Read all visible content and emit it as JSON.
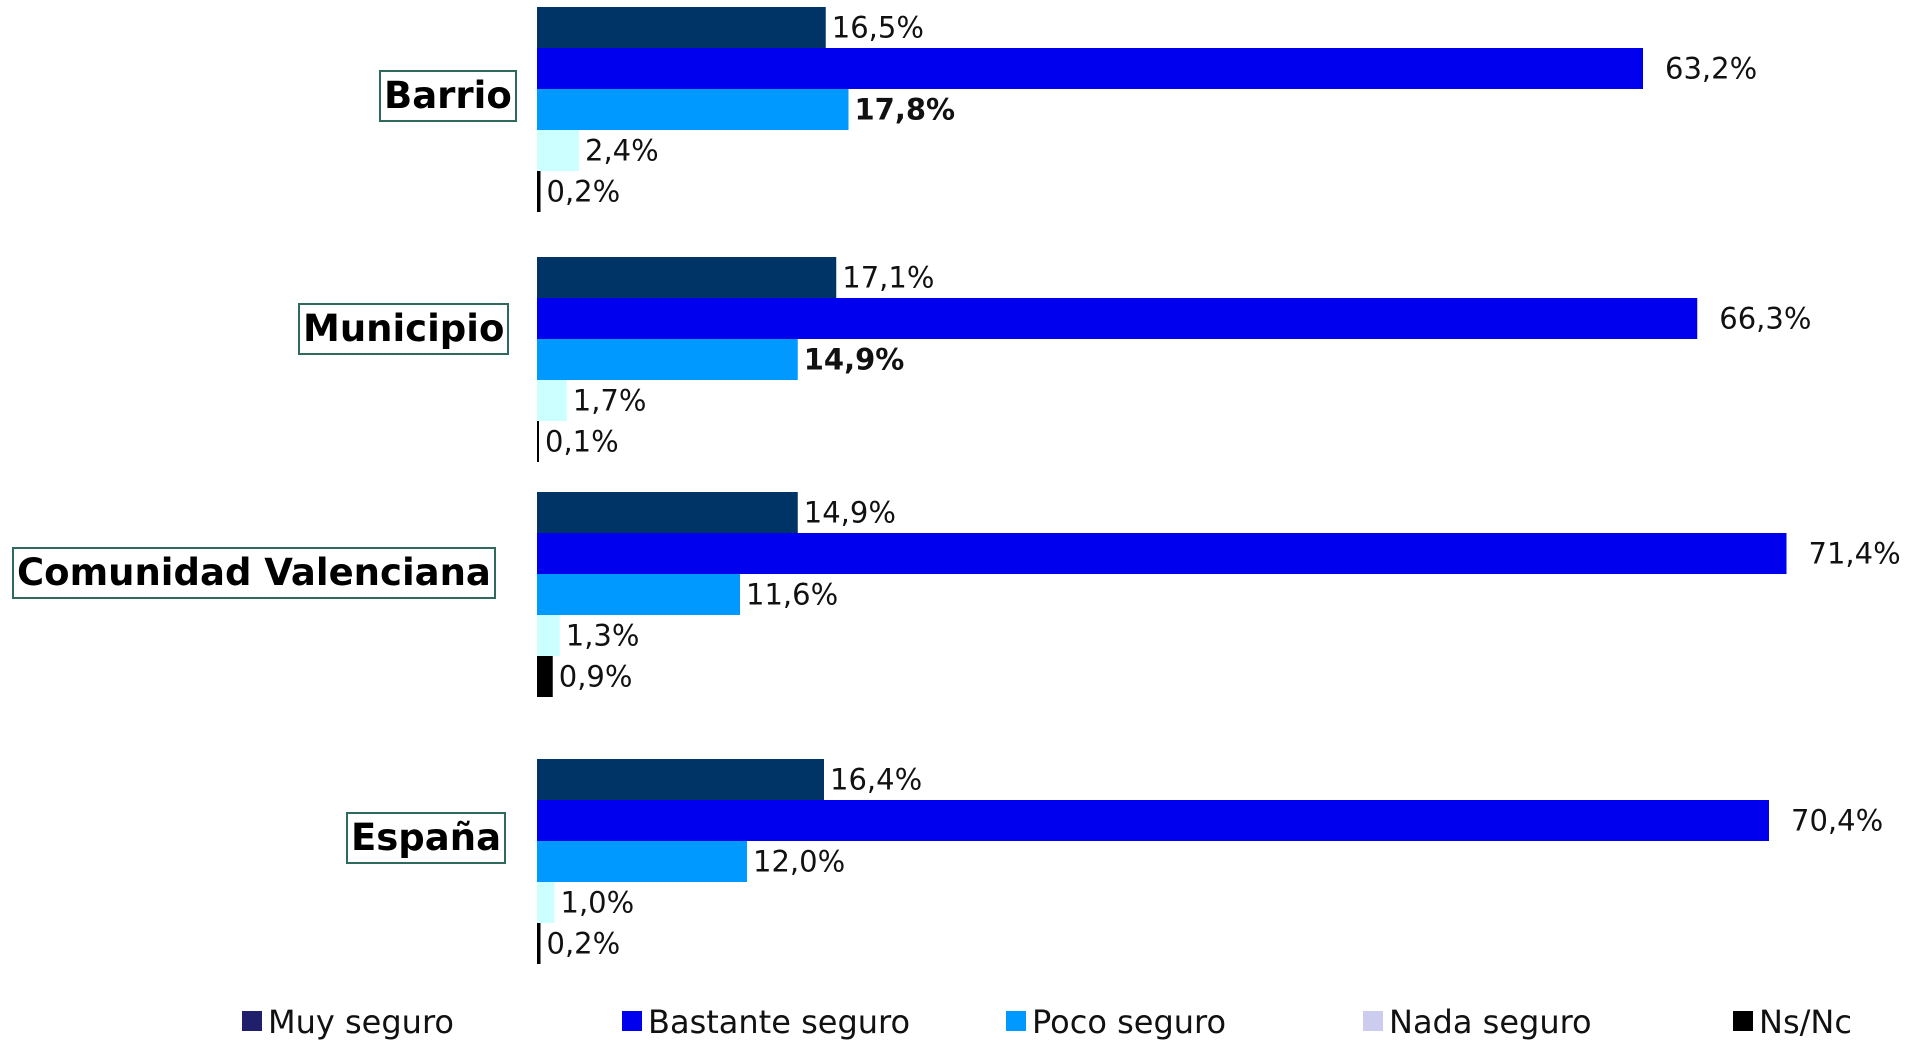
{
  "chart_data": {
    "type": "bar",
    "orientation": "horizontal",
    "categories": [
      "Barrio",
      "Municipio",
      "Comunidad Valenciana",
      "España"
    ],
    "series": [
      {
        "name": "Muy seguro",
        "color": "#003366",
        "legend_color": "#1f1f6b",
        "labels": [
          "16,5%",
          "17,1%",
          "14,9%",
          "16,4%"
        ],
        "values": [
          16.5,
          17.1,
          14.9,
          16.4
        ]
      },
      {
        "name": "Bastante seguro",
        "color": "#0000ee",
        "legend_color": "#0000ee",
        "labels": [
          "63,2%",
          "66,3%",
          "71,4%",
          "70,4%"
        ],
        "values": [
          63.2,
          66.3,
          71.4,
          70.4
        ]
      },
      {
        "name": "Poco seguro",
        "color": "#0099ff",
        "legend_color": "#0099ff",
        "labels": [
          "17,8%",
          "14,9%",
          "11,6%",
          "12,0%"
        ],
        "values": [
          17.8,
          14.9,
          11.6,
          12.0
        ]
      },
      {
        "name": "Nada seguro",
        "color": "#ccffff",
        "legend_color": "#ccccee",
        "labels": [
          "2,4%",
          "1,7%",
          "1,3%",
          "1,0%"
        ],
        "values": [
          2.4,
          1.7,
          1.3,
          1.0
        ]
      },
      {
        "name": "Ns/Nc",
        "color": "#000000",
        "legend_color": "#000000",
        "labels": [
          "0,2%",
          "0,1%",
          "0,9%",
          "0,2%"
        ],
        "values": [
          0.2,
          0.1,
          0.9,
          0.2
        ]
      }
    ],
    "bold_labels": [
      [
        0,
        2
      ],
      [
        1,
        2
      ]
    ],
    "xlim": [
      0,
      72
    ],
    "legend_position": "bottom",
    "grid": false
  }
}
